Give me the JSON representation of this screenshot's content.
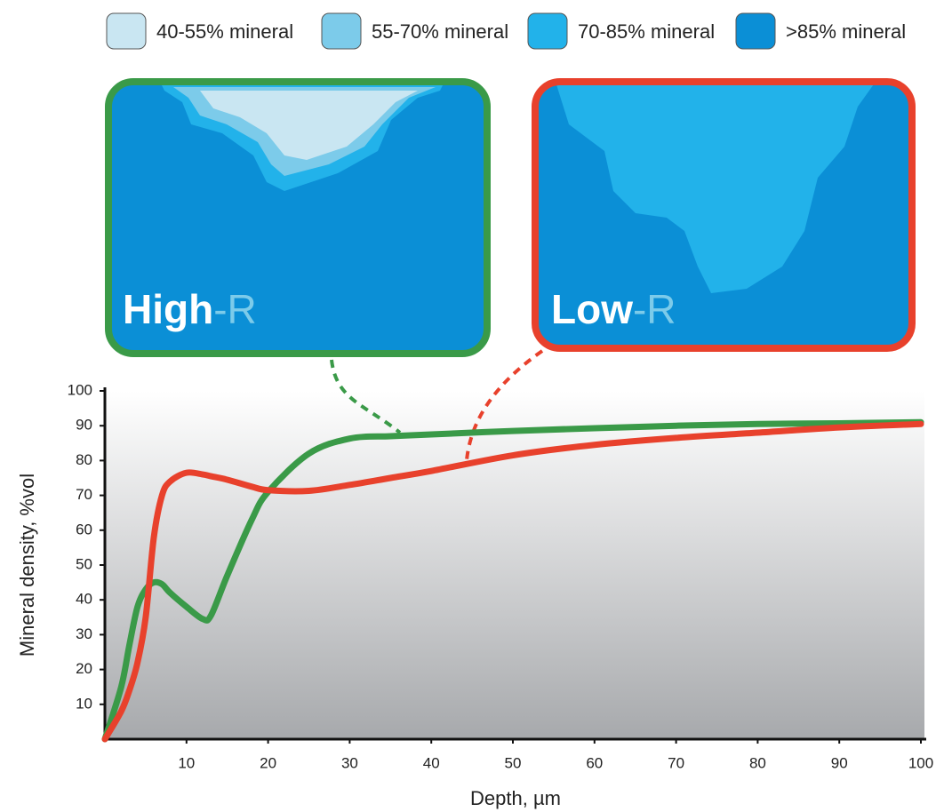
{
  "chart_data": {
    "type": "line",
    "xlabel": "Depth, µm",
    "ylabel": "Mineral density, %vol",
    "x": [
      0,
      2,
      3,
      4,
      5,
      6,
      7,
      8,
      10,
      12,
      13,
      15,
      18,
      20,
      25,
      30,
      35,
      40,
      50,
      60,
      70,
      80,
      90,
      100
    ],
    "series": [
      {
        "name": "High-R",
        "color": "#3a9a48",
        "values": [
          0,
          15,
          27,
          38,
          43,
          45,
          44.5,
          42,
          38,
          34.5,
          35.5,
          47,
          63,
          71,
          82,
          86.3,
          87,
          87.5,
          88.5,
          89.3,
          90,
          90.5,
          90.7,
          91
        ]
      },
      {
        "name": "Low-R",
        "color": "#e8412c",
        "values": [
          0,
          8,
          14,
          22,
          35,
          58,
          70,
          74,
          76.5,
          76,
          75.5,
          74.5,
          72.5,
          71.5,
          71.3,
          73,
          75,
          77,
          81.5,
          84.5,
          86.5,
          88,
          89.5,
          90.5
        ]
      }
    ],
    "legend": [
      {
        "name": "40-55% mineral",
        "color": "#c9e6f2"
      },
      {
        "name": "55-70% mineral",
        "color": "#7ccbea"
      },
      {
        "name": "70-85% mineral",
        "color": "#22b2ea"
      },
      {
        "name": ">85% mineral",
        "color": "#0b8fd6"
      }
    ],
    "xlim": [
      0,
      100
    ],
    "ylim": [
      0,
      100
    ],
    "xticks": [
      10,
      20,
      30,
      40,
      50,
      60,
      70,
      80,
      90,
      100
    ],
    "yticks": [
      10,
      20,
      30,
      40,
      50,
      60,
      70,
      80,
      90,
      100
    ]
  }
}
